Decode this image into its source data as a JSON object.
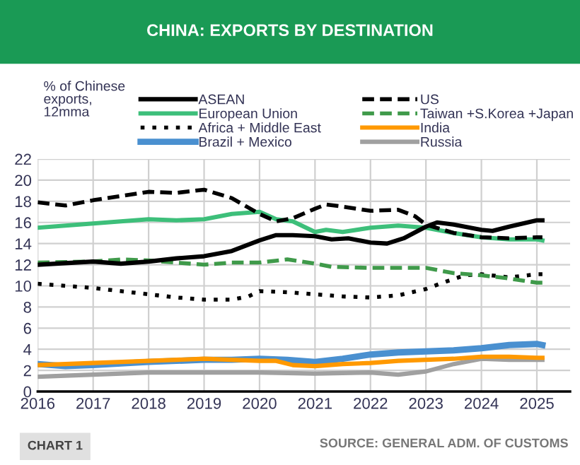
{
  "chart_data": {
    "type": "line",
    "title": "CHINA: EXPORTS BY DESTINATION",
    "ylabel": "% of Chinese\nexports,\n12mma",
    "annotations": [
      "CHART 1",
      "SOURCE: GENERAL ADM. OF CUSTOMS"
    ],
    "xlim": [
      2016,
      2025.6
    ],
    "xticks": [
      2016,
      2017,
      2018,
      2019,
      2020,
      2021,
      2022,
      2023,
      2024,
      2025
    ],
    "ylim": [
      0,
      22
    ],
    "yticks": [
      0,
      2,
      4,
      6,
      8,
      10,
      12,
      14,
      16,
      18,
      20,
      22
    ],
    "grid": true,
    "legend": "top",
    "series": [
      {
        "name": "ASEAN",
        "color": "#000000",
        "line_style": "solid",
        "x": [
          2016,
          2017,
          2017.5,
          2018,
          2018.5,
          2019,
          2019.5,
          2020,
          2020.3,
          2020.6,
          2021,
          2021.3,
          2021.6,
          2022,
          2022.3,
          2022.6,
          2023,
          2023.2,
          2023.5,
          2024,
          2024.2,
          2024.5,
          2025,
          2025.1
        ],
        "values": [
          12.0,
          12.3,
          12.1,
          12.3,
          12.6,
          12.8,
          13.3,
          14.3,
          14.8,
          14.8,
          14.7,
          14.4,
          14.5,
          14.1,
          14.0,
          14.5,
          15.6,
          16.0,
          15.8,
          15.3,
          15.2,
          15.6,
          16.2,
          16.2
        ]
      },
      {
        "name": "US",
        "color": "#000000",
        "line_style": "dashed",
        "x": [
          2016,
          2016.5,
          2017,
          2017.5,
          2018,
          2018.5,
          2019,
          2019.5,
          2020,
          2020.3,
          2020.6,
          2021,
          2021.2,
          2021.5,
          2022,
          2022.5,
          2022.8,
          2023,
          2023.5,
          2024,
          2024.5,
          2025,
          2025.1
        ],
        "values": [
          17.9,
          17.6,
          18.1,
          18.5,
          18.9,
          18.8,
          19.1,
          18.3,
          16.8,
          16.1,
          16.4,
          17.3,
          17.7,
          17.5,
          17.1,
          17.2,
          16.6,
          15.8,
          15.0,
          14.6,
          14.5,
          14.6,
          14.6
        ]
      },
      {
        "name": "European Union",
        "color": "#3dbf7a",
        "line_style": "solid",
        "x": [
          2016,
          2017,
          2018,
          2018.5,
          2019,
          2019.5,
          2020,
          2020.3,
          2020.6,
          2021,
          2021.2,
          2021.5,
          2022,
          2022.5,
          2023,
          2023.5,
          2024,
          2024.5,
          2025,
          2025.1
        ],
        "values": [
          15.5,
          15.9,
          16.3,
          16.2,
          16.3,
          16.8,
          17.0,
          16.3,
          16.1,
          15.1,
          15.3,
          15.1,
          15.5,
          15.7,
          15.5,
          15.0,
          14.6,
          14.4,
          14.4,
          14.3
        ]
      },
      {
        "name": "Taiwan +S.Korea +Japan",
        "color": "#3f9a4a",
        "line_style": "dashed",
        "x": [
          2016,
          2017,
          2017.5,
          2018,
          2018.5,
          2019,
          2019.5,
          2020,
          2020.5,
          2021,
          2021.3,
          2022,
          2022.5,
          2023,
          2023.5,
          2024,
          2024.5,
          2025,
          2025.1
        ],
        "values": [
          12.2,
          12.3,
          12.5,
          12.4,
          12.2,
          12.0,
          12.2,
          12.2,
          12.5,
          12.1,
          11.8,
          11.7,
          11.7,
          11.7,
          11.2,
          11.0,
          10.7,
          10.3,
          10.3
        ]
      },
      {
        "name": "Africa + Middle East",
        "color": "#000000",
        "line_style": "dotted",
        "x": [
          2016,
          2017,
          2018,
          2018.5,
          2019,
          2019.5,
          2019.8,
          2020,
          2020.5,
          2021,
          2021.5,
          2022,
          2022.5,
          2023,
          2023.3,
          2023.7,
          2024,
          2024.5,
          2025,
          2025.1
        ],
        "values": [
          10.2,
          9.8,
          9.2,
          8.9,
          8.7,
          8.7,
          9.0,
          9.5,
          9.4,
          9.2,
          9.0,
          8.9,
          9.1,
          9.7,
          10.3,
          11.0,
          11.1,
          10.8,
          11.1,
          11.1
        ]
      },
      {
        "name": "India",
        "color": "#ff9900",
        "line_style": "solid",
        "x": [
          2016,
          2017,
          2018,
          2019,
          2019.5,
          2020,
          2020.3,
          2020.6,
          2021,
          2021.5,
          2022,
          2022.5,
          2023,
          2023.5,
          2024,
          2024.5,
          2025,
          2025.1
        ],
        "values": [
          2.5,
          2.7,
          2.9,
          3.1,
          3.0,
          2.9,
          2.9,
          2.5,
          2.4,
          2.6,
          2.7,
          2.9,
          3.0,
          3.1,
          3.3,
          3.3,
          3.2,
          3.2
        ]
      },
      {
        "name": "Brazil + Mexico",
        "color": "#4a90d0",
        "line_style": "solid",
        "x": [
          2016,
          2016.5,
          2017,
          2018,
          2019,
          2019.5,
          2020,
          2020.5,
          2021,
          2021.5,
          2022,
          2022.5,
          2023,
          2023.5,
          2024,
          2024.5,
          2025,
          2025.1
        ],
        "values": [
          2.6,
          2.4,
          2.5,
          2.8,
          3.0,
          3.0,
          3.1,
          3.0,
          2.8,
          3.1,
          3.5,
          3.7,
          3.8,
          3.9,
          4.1,
          4.4,
          4.5,
          4.4
        ]
      },
      {
        "name": "Russia",
        "color": "#a0a0a0",
        "line_style": "solid",
        "x": [
          2016,
          2017,
          2018,
          2019,
          2020,
          2021,
          2022,
          2022.5,
          2023,
          2023.5,
          2024,
          2024.5,
          2025,
          2025.1
        ],
        "values": [
          1.4,
          1.6,
          1.8,
          1.8,
          1.8,
          1.7,
          1.8,
          1.6,
          1.9,
          2.6,
          3.1,
          3.0,
          3.0,
          3.0
        ]
      }
    ]
  }
}
